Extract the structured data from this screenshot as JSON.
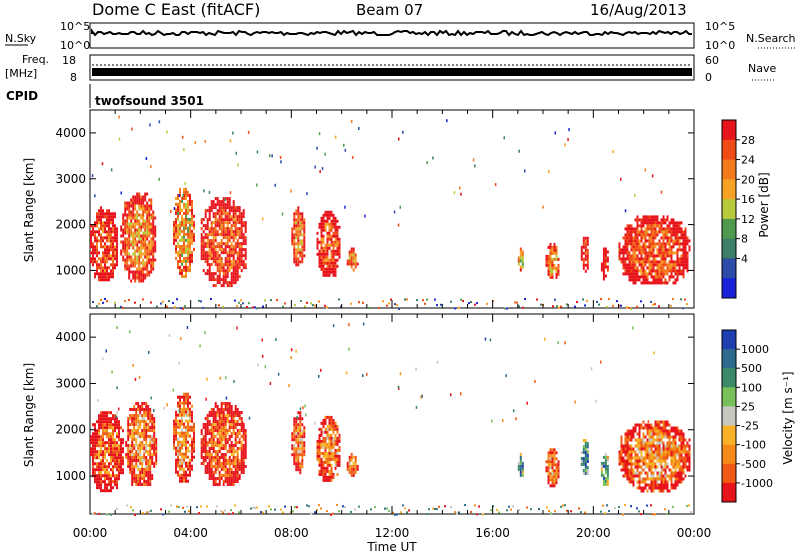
{
  "header": {
    "station": "Dome C East (fitACF)",
    "beam": "Beam 07",
    "date": "16/Aug/2013"
  },
  "noise_panel": {
    "left_label": "N.Sky",
    "right_label": "N.Search",
    "left_ticks": [
      "10^5",
      "10^0"
    ],
    "right_ticks": [
      "10^5",
      "10^0"
    ]
  },
  "freq_panel": {
    "left_label_1": "Freq.",
    "left_label_2": "[MHz]",
    "right_label": "Nave",
    "left_ticks": [
      "18",
      "8"
    ],
    "right_ticks": [
      "60",
      "0"
    ]
  },
  "cpid_panel": {
    "label": "CPID",
    "text": "twofsound 3501"
  },
  "chart_data": [
    {
      "type": "heatmap",
      "title": "Power",
      "ylabel": "Slant Range [km]",
      "xlabel": "Time UT",
      "x_ticks": [
        "00:00",
        "04:00",
        "08:00",
        "12:00",
        "16:00",
        "20:00",
        "00:00"
      ],
      "xlim_hours": [
        0,
        24
      ],
      "ylim": [
        180,
        4500
      ],
      "y_ticks": [
        1000,
        2000,
        3000,
        4000
      ],
      "colorbar": {
        "label": "Power [dB]",
        "ticks": [
          "28",
          "24",
          "20",
          "16",
          "12",
          "8",
          "4"
        ],
        "colors": [
          "#e8141c",
          "#f04a16",
          "#f47a1e",
          "#f7a125",
          "#b9c93c",
          "#4e9b4f",
          "#3b7f66",
          "#2c4ca8",
          "#1a22d8"
        ]
      },
      "regions": [
        {
          "t0": 0.0,
          "t1": 1.1,
          "r0": 800,
          "r1": 2400,
          "level": 7
        },
        {
          "t0": 1.2,
          "t1": 2.6,
          "r0": 800,
          "r1": 2700,
          "level": 6
        },
        {
          "t0": 3.3,
          "t1": 4.1,
          "r0": 900,
          "r1": 2800,
          "level": 5
        },
        {
          "t0": 4.4,
          "t1": 6.2,
          "r0": 700,
          "r1": 2600,
          "level": 7
        },
        {
          "t0": 8.0,
          "t1": 8.5,
          "r0": 1100,
          "r1": 2400,
          "level": 6
        },
        {
          "t0": 9.0,
          "t1": 9.9,
          "r0": 900,
          "r1": 2300,
          "level": 7
        },
        {
          "t0": 10.2,
          "t1": 10.6,
          "r0": 1000,
          "r1": 1500,
          "level": 6
        },
        {
          "t0": 17.0,
          "t1": 17.2,
          "r0": 1000,
          "r1": 1500,
          "level": 4
        },
        {
          "t0": 18.1,
          "t1": 18.6,
          "r0": 800,
          "r1": 1600,
          "level": 6
        },
        {
          "t0": 19.5,
          "t1": 19.8,
          "r0": 1000,
          "r1": 1800,
          "level": 7
        },
        {
          "t0": 20.3,
          "t1": 20.6,
          "r0": 800,
          "r1": 1500,
          "level": 8
        },
        {
          "t0": 21.0,
          "t1": 23.8,
          "r0": 700,
          "r1": 2200,
          "level": 7
        }
      ],
      "ground_band": {
        "r0": 180,
        "r1": 400
      }
    },
    {
      "type": "heatmap",
      "title": "Velocity",
      "ylabel": "Slant Range [km]",
      "xlabel": "Time UT",
      "x_ticks": [
        "00:00",
        "04:00",
        "08:00",
        "12:00",
        "16:00",
        "20:00",
        "00:00"
      ],
      "xlim_hours": [
        0,
        24
      ],
      "ylim": [
        180,
        4500
      ],
      "y_ticks": [
        1000,
        2000,
        3000,
        4000
      ],
      "colorbar": {
        "label": "Velocity [m s⁻¹]",
        "ticks": [
          "1000",
          "500",
          "100",
          "25",
          "-25",
          "-100",
          "-500",
          "-1000"
        ],
        "colors": [
          "#1f3fb0",
          "#2e6a8e",
          "#3a8a6a",
          "#77c05a",
          "#c8c8c0",
          "#f9b227",
          "#f58a18",
          "#f05a14",
          "#e8141c"
        ]
      },
      "regions": [
        {
          "t0": 0.0,
          "t1": 1.3,
          "r0": 700,
          "r1": 2400,
          "level": 7
        },
        {
          "t0": 1.4,
          "t1": 2.6,
          "r0": 800,
          "r1": 2600,
          "level": 6
        },
        {
          "t0": 3.3,
          "t1": 4.1,
          "r0": 900,
          "r1": 2800,
          "level": 6
        },
        {
          "t0": 4.4,
          "t1": 6.2,
          "r0": 800,
          "r1": 2600,
          "level": 7
        },
        {
          "t0": 8.0,
          "t1": 8.5,
          "r0": 1100,
          "r1": 2400,
          "level": 6
        },
        {
          "t0": 9.0,
          "t1": 9.9,
          "r0": 900,
          "r1": 2300,
          "level": 6
        },
        {
          "t0": 10.2,
          "t1": 10.6,
          "r0": 1000,
          "r1": 1500,
          "level": 6
        },
        {
          "t0": 17.0,
          "t1": 17.2,
          "r0": 1000,
          "r1": 1500,
          "level": 1
        },
        {
          "t0": 18.1,
          "t1": 18.6,
          "r0": 800,
          "r1": 1600,
          "level": 6
        },
        {
          "t0": 19.5,
          "t1": 19.8,
          "r0": 1000,
          "r1": 1800,
          "level": 1
        },
        {
          "t0": 20.3,
          "t1": 20.6,
          "r0": 800,
          "r1": 1500,
          "level": 2
        },
        {
          "t0": 21.0,
          "t1": 23.8,
          "r0": 700,
          "r1": 2200,
          "level": 6
        }
      ],
      "ground_band": {
        "r0": 180,
        "r1": 400
      }
    }
  ]
}
